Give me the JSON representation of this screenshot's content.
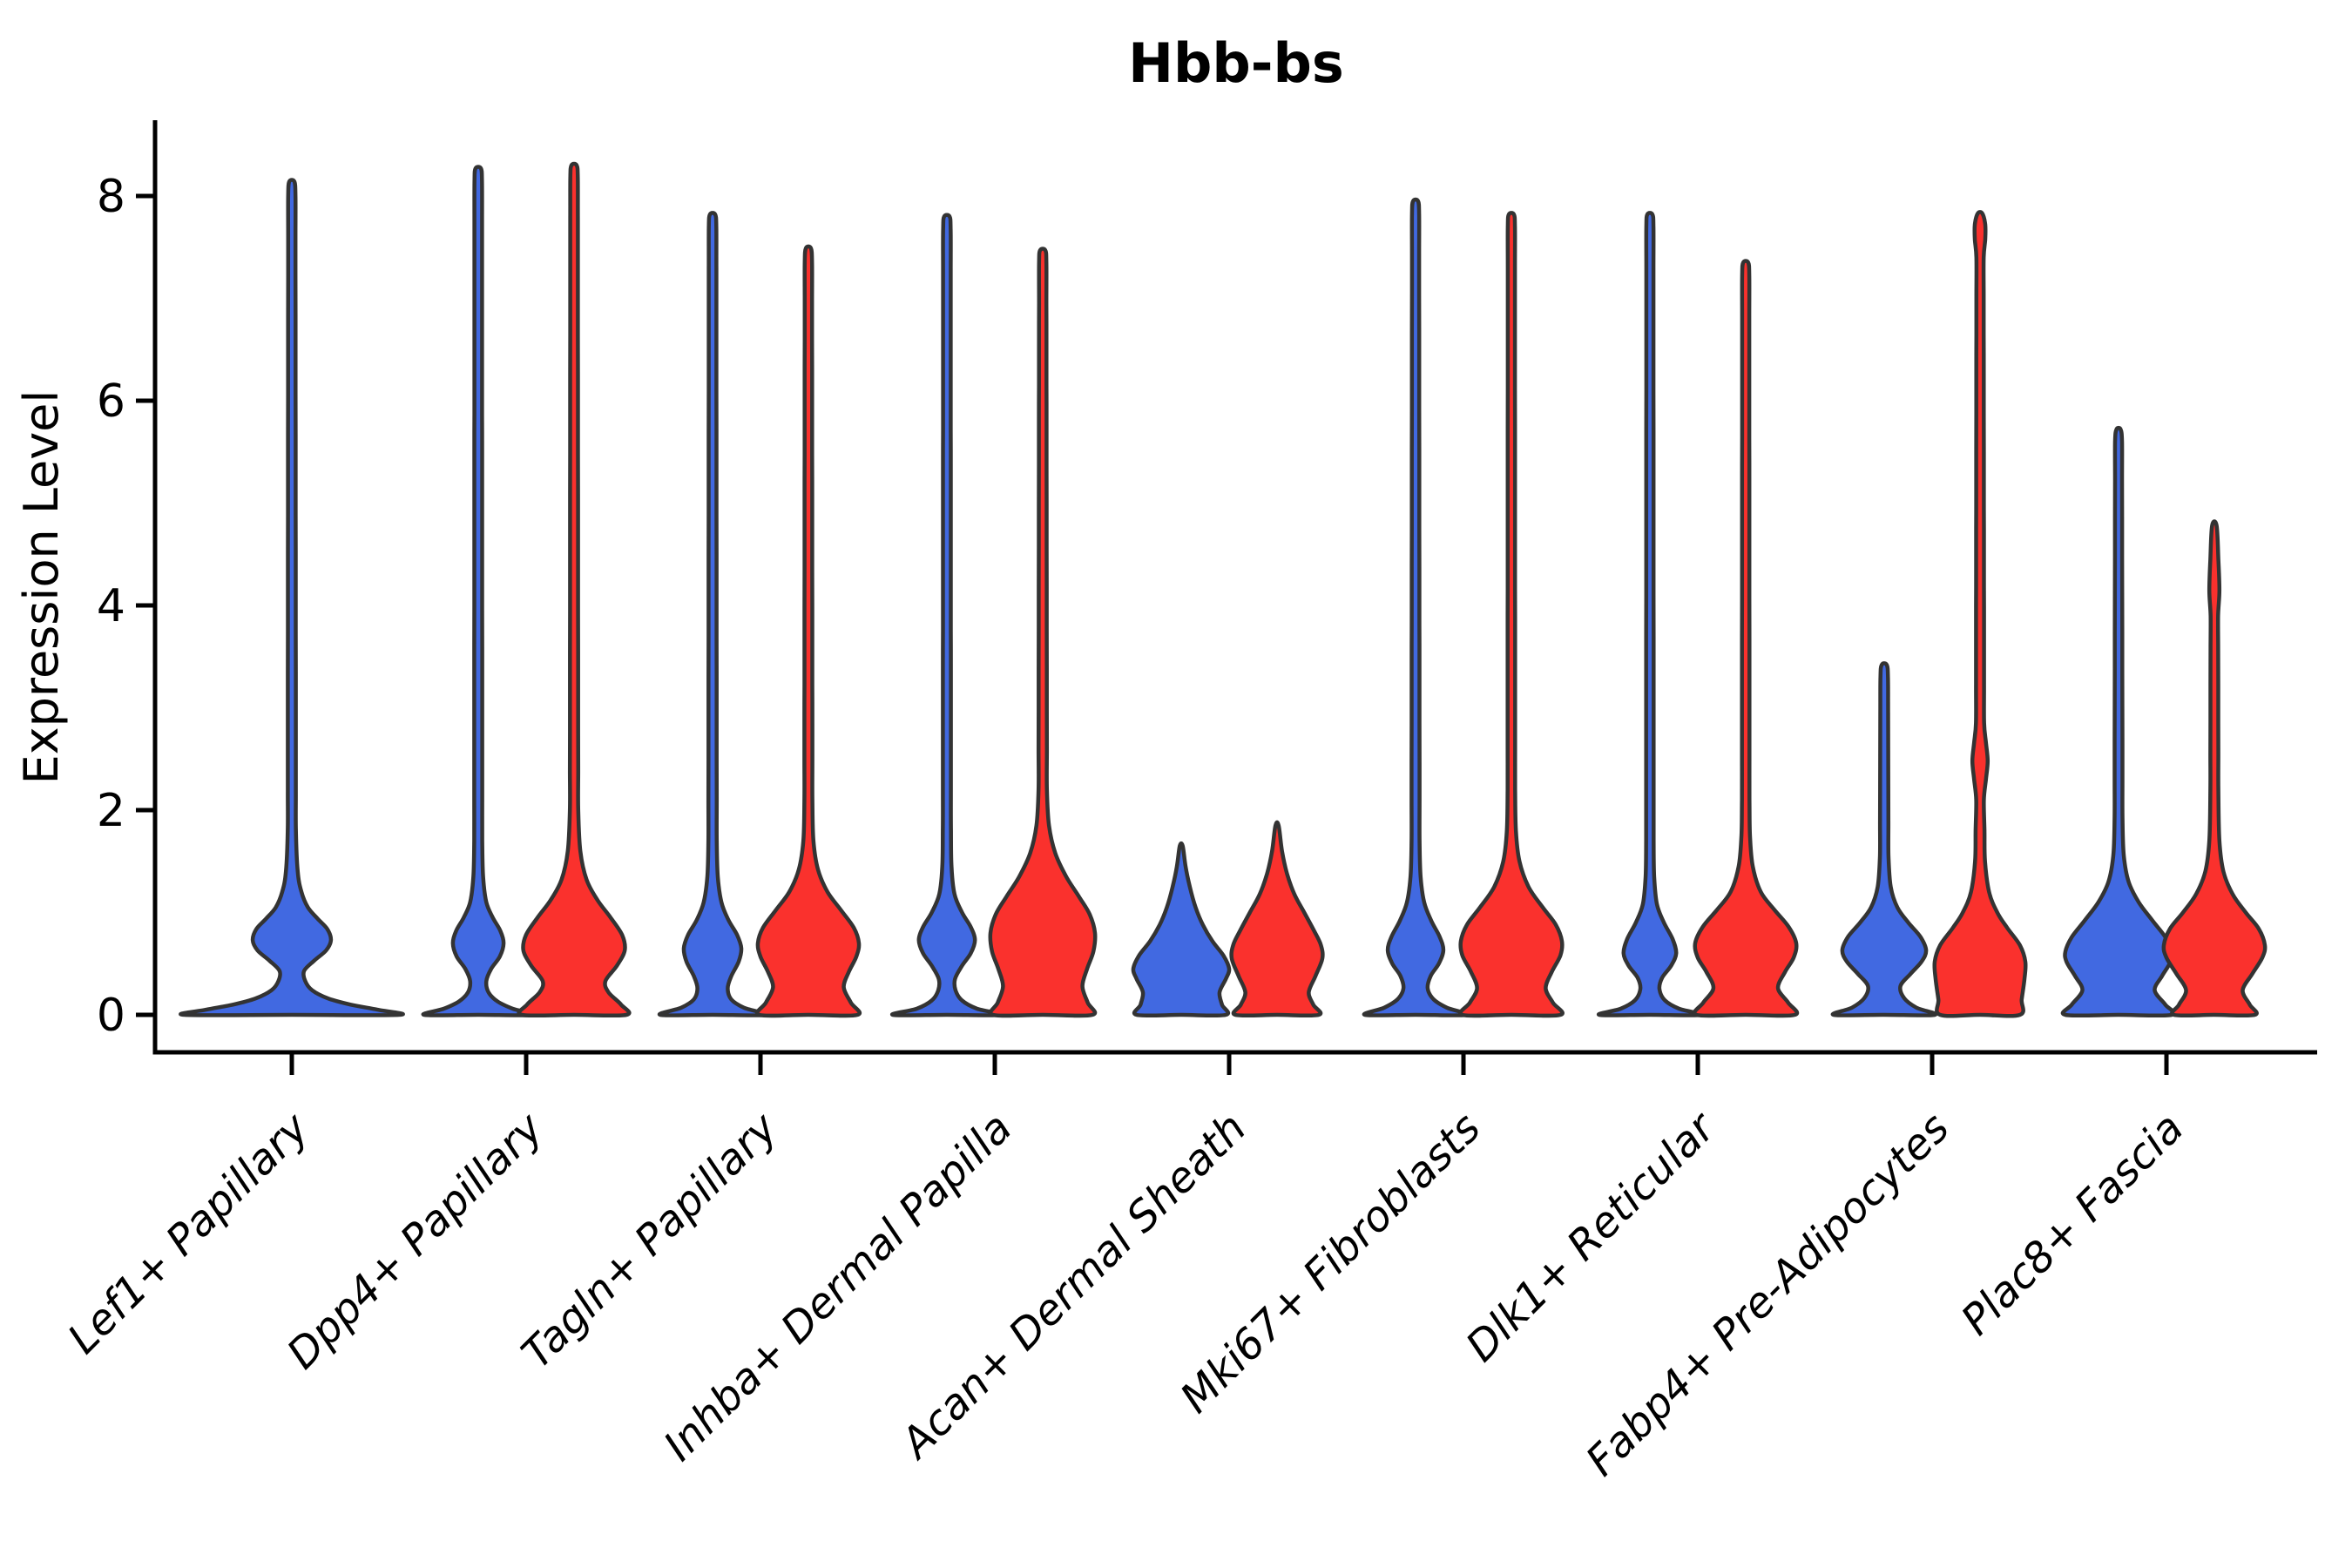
{
  "title": "Hbb-bs",
  "y_axis": {
    "label": "Expression Level",
    "tick_labels": [
      "0",
      "2",
      "4",
      "6",
      "8"
    ]
  },
  "x_axis": {
    "categories": [
      "Lef1+ Papillary",
      "Dpp4+ Papillary",
      "Tagln+ Papillary",
      "Inhba+ Dermal Papilla",
      "Acan+ Dermal Sheath",
      "Mki67+ Fibroblasts",
      "Dlk1+ Reticular",
      "Fabp4+ Pre-Adipocytes",
      "Plac8+ Fascia"
    ]
  },
  "chart_data": {
    "type": "violin",
    "title": "Hbb-bs",
    "xlabel": "",
    "ylabel": "Expression Level",
    "yticks": [
      0,
      2,
      4,
      6,
      8
    ],
    "ylim": [
      -0.4,
      8.7
    ],
    "grid": false,
    "legend_position": "none",
    "categories": [
      "Lef1+ Papillary",
      "Dpp4+ Papillary",
      "Tagln+ Papillary",
      "Inhba+ Dermal Papilla",
      "Acan+ Dermal Sheath",
      "Mki67+ Fibroblasts",
      "Dlk1+ Reticular",
      "Fabp4+ Pre-Adipocytes",
      "Plac8+ Fascia"
    ],
    "colors": {
      "blue": "#4169E1",
      "red": "#FA312D",
      "outline": "#333333"
    },
    "violins": [
      {
        "category": "Lef1+ Papillary",
        "side": "center",
        "color": "blue",
        "max_expression": 8.14,
        "half_width": 123,
        "profile": [
          [
            0,
            1.0
          ],
          [
            0.05,
            0.8
          ],
          [
            0.1,
            0.55
          ],
          [
            0.16,
            0.34
          ],
          [
            0.24,
            0.19
          ],
          [
            0.33,
            0.125
          ],
          [
            0.43,
            0.115
          ],
          [
            0.53,
            0.21
          ],
          [
            0.63,
            0.32
          ],
          [
            0.73,
            0.365
          ],
          [
            0.84,
            0.33
          ],
          [
            0.94,
            0.24
          ],
          [
            1.05,
            0.15
          ],
          [
            1.2,
            0.09
          ],
          [
            1.4,
            0.055
          ],
          [
            1.8,
            0.038
          ],
          [
            8.0,
            0.034
          ],
          [
            8.14,
            0.024
          ]
        ]
      },
      {
        "category": "Dpp4+ Papillary",
        "side": "left",
        "color": "blue",
        "max_expression": 8.27,
        "half_width": 62,
        "profile": [
          [
            0,
            1.0
          ],
          [
            0.06,
            0.64
          ],
          [
            0.13,
            0.36
          ],
          [
            0.22,
            0.19
          ],
          [
            0.33,
            0.15
          ],
          [
            0.45,
            0.24
          ],
          [
            0.57,
            0.4
          ],
          [
            0.7,
            0.47
          ],
          [
            0.82,
            0.41
          ],
          [
            0.95,
            0.27
          ],
          [
            1.1,
            0.15
          ],
          [
            1.35,
            0.09
          ],
          [
            1.7,
            0.075
          ],
          [
            8.15,
            0.07
          ],
          [
            8.27,
            0.05
          ]
        ]
      },
      {
        "category": "Dpp4+ Papillary",
        "side": "right",
        "color": "red",
        "max_expression": 8.3,
        "half_width": 60,
        "profile": [
          [
            0,
            1.0
          ],
          [
            0.1,
            0.9
          ],
          [
            0.22,
            0.66
          ],
          [
            0.33,
            0.6
          ],
          [
            0.48,
            0.82
          ],
          [
            0.63,
            0.97
          ],
          [
            0.78,
            0.92
          ],
          [
            0.95,
            0.7
          ],
          [
            1.12,
            0.45
          ],
          [
            1.32,
            0.24
          ],
          [
            1.6,
            0.12
          ],
          [
            2.0,
            0.08
          ],
          [
            8.18,
            0.072
          ],
          [
            8.3,
            0.05
          ]
        ]
      },
      {
        "category": "Tagln+ Papillary",
        "side": "left",
        "color": "blue",
        "max_expression": 7.82,
        "half_width": 60,
        "profile": [
          [
            0,
            1.0
          ],
          [
            0.07,
            0.6
          ],
          [
            0.15,
            0.36
          ],
          [
            0.26,
            0.29
          ],
          [
            0.38,
            0.36
          ],
          [
            0.52,
            0.5
          ],
          [
            0.65,
            0.55
          ],
          [
            0.78,
            0.47
          ],
          [
            0.93,
            0.3
          ],
          [
            1.1,
            0.17
          ],
          [
            1.35,
            0.1
          ],
          [
            1.7,
            0.08
          ],
          [
            7.7,
            0.072
          ],
          [
            7.82,
            0.05
          ]
        ]
      },
      {
        "category": "Tagln+ Papillary",
        "side": "right",
        "color": "red",
        "max_expression": 7.49,
        "half_width": 58,
        "profile": [
          [
            0,
            0.97
          ],
          [
            0.12,
            0.84
          ],
          [
            0.27,
            0.7
          ],
          [
            0.42,
            0.8
          ],
          [
            0.57,
            0.95
          ],
          [
            0.7,
            1.0
          ],
          [
            0.85,
            0.9
          ],
          [
            1.02,
            0.65
          ],
          [
            1.2,
            0.38
          ],
          [
            1.42,
            0.19
          ],
          [
            1.7,
            0.1
          ],
          [
            2.1,
            0.08
          ],
          [
            7.35,
            0.072
          ],
          [
            7.49,
            0.05
          ]
        ]
      },
      {
        "category": "Inhba+ Dermal Papilla",
        "side": "left",
        "color": "blue",
        "max_expression": 7.8,
        "half_width": 62,
        "profile": [
          [
            0,
            1.0
          ],
          [
            0.06,
            0.56
          ],
          [
            0.14,
            0.28
          ],
          [
            0.24,
            0.16
          ],
          [
            0.35,
            0.15
          ],
          [
            0.48,
            0.28
          ],
          [
            0.6,
            0.44
          ],
          [
            0.73,
            0.52
          ],
          [
            0.86,
            0.44
          ],
          [
            1.0,
            0.28
          ],
          [
            1.18,
            0.14
          ],
          [
            1.45,
            0.085
          ],
          [
            1.8,
            0.075
          ],
          [
            7.68,
            0.07
          ],
          [
            7.8,
            0.05
          ]
        ]
      },
      {
        "category": "Inhba+ Dermal Papilla",
        "side": "right",
        "color": "red",
        "max_expression": 7.47,
        "half_width": 60,
        "profile": [
          [
            0,
            0.95
          ],
          [
            0.12,
            0.86
          ],
          [
            0.28,
            0.76
          ],
          [
            0.45,
            0.85
          ],
          [
            0.62,
            0.97
          ],
          [
            0.8,
            1.0
          ],
          [
            0.98,
            0.9
          ],
          [
            1.15,
            0.7
          ],
          [
            1.35,
            0.45
          ],
          [
            1.58,
            0.24
          ],
          [
            1.85,
            0.12
          ],
          [
            2.2,
            0.08
          ],
          [
            7.35,
            0.07
          ],
          [
            7.47,
            0.05
          ]
        ]
      },
      {
        "category": "Acan+ Dermal Sheath",
        "side": "left",
        "color": "blue",
        "max_expression": 1.65,
        "half_width": 55,
        "profile": [
          [
            0,
            0.93
          ],
          [
            0.1,
            0.85
          ],
          [
            0.22,
            0.8
          ],
          [
            0.35,
            0.93
          ],
          [
            0.45,
            1.0
          ],
          [
            0.58,
            0.88
          ],
          [
            0.72,
            0.65
          ],
          [
            0.88,
            0.45
          ],
          [
            1.05,
            0.3
          ],
          [
            1.25,
            0.18
          ],
          [
            1.45,
            0.09
          ],
          [
            1.65,
            0.03
          ]
        ]
      },
      {
        "category": "Acan+ Dermal Sheath",
        "side": "right",
        "color": "red",
        "max_expression": 1.85,
        "half_width": 52,
        "profile": [
          [
            0,
            0.92
          ],
          [
            0.1,
            0.8
          ],
          [
            0.22,
            0.7
          ],
          [
            0.38,
            0.85
          ],
          [
            0.55,
            1.0
          ],
          [
            0.68,
            0.97
          ],
          [
            0.82,
            0.82
          ],
          [
            1.0,
            0.6
          ],
          [
            1.18,
            0.38
          ],
          [
            1.38,
            0.22
          ],
          [
            1.6,
            0.11
          ],
          [
            1.85,
            0.035
          ]
        ]
      },
      {
        "category": "Mki67+ Fibroblasts",
        "side": "left",
        "color": "blue",
        "max_expression": 7.95,
        "half_width": 58,
        "profile": [
          [
            0,
            1.0
          ],
          [
            0.07,
            0.62
          ],
          [
            0.15,
            0.36
          ],
          [
            0.26,
            0.24
          ],
          [
            0.38,
            0.3
          ],
          [
            0.5,
            0.46
          ],
          [
            0.63,
            0.55
          ],
          [
            0.76,
            0.48
          ],
          [
            0.92,
            0.31
          ],
          [
            1.1,
            0.17
          ],
          [
            1.35,
            0.1
          ],
          [
            1.7,
            0.08
          ],
          [
            7.82,
            0.07
          ],
          [
            7.95,
            0.05
          ]
        ]
      },
      {
        "category": "Mki67+ Fibroblasts",
        "side": "right",
        "color": "red",
        "max_expression": 7.82,
        "half_width": 58,
        "profile": [
          [
            0,
            0.97
          ],
          [
            0.12,
            0.82
          ],
          [
            0.26,
            0.68
          ],
          [
            0.42,
            0.8
          ],
          [
            0.58,
            0.97
          ],
          [
            0.72,
            1.0
          ],
          [
            0.88,
            0.88
          ],
          [
            1.05,
            0.62
          ],
          [
            1.25,
            0.34
          ],
          [
            1.5,
            0.16
          ],
          [
            1.8,
            0.09
          ],
          [
            2.2,
            0.075
          ],
          [
            7.7,
            0.07
          ],
          [
            7.82,
            0.05
          ]
        ]
      },
      {
        "category": "Dlk1+ Reticular",
        "side": "left",
        "color": "blue",
        "max_expression": 7.82,
        "half_width": 58,
        "profile": [
          [
            0,
            1.0
          ],
          [
            0.06,
            0.58
          ],
          [
            0.14,
            0.3
          ],
          [
            0.25,
            0.19
          ],
          [
            0.36,
            0.24
          ],
          [
            0.48,
            0.42
          ],
          [
            0.6,
            0.52
          ],
          [
            0.74,
            0.45
          ],
          [
            0.9,
            0.28
          ],
          [
            1.08,
            0.14
          ],
          [
            1.35,
            0.085
          ],
          [
            1.7,
            0.075
          ],
          [
            7.7,
            0.07
          ],
          [
            7.82,
            0.05
          ]
        ]
      },
      {
        "category": "Dlk1+ Reticular",
        "side": "right",
        "color": "red",
        "max_expression": 7.35,
        "half_width": 58,
        "profile": [
          [
            0,
            0.97
          ],
          [
            0.12,
            0.84
          ],
          [
            0.26,
            0.64
          ],
          [
            0.42,
            0.78
          ],
          [
            0.56,
            0.95
          ],
          [
            0.7,
            1.0
          ],
          [
            0.86,
            0.85
          ],
          [
            1.02,
            0.58
          ],
          [
            1.2,
            0.3
          ],
          [
            1.45,
            0.14
          ],
          [
            1.75,
            0.085
          ],
          [
            2.1,
            0.075
          ],
          [
            7.22,
            0.07
          ],
          [
            7.35,
            0.05
          ]
        ]
      },
      {
        "category": "Fabp4+ Pre-Adipocytes",
        "side": "left",
        "color": "blue",
        "max_expression": 3.42,
        "half_width": 58,
        "profile": [
          [
            0,
            1.0
          ],
          [
            0.07,
            0.64
          ],
          [
            0.16,
            0.4
          ],
          [
            0.28,
            0.32
          ],
          [
            0.4,
            0.52
          ],
          [
            0.52,
            0.74
          ],
          [
            0.63,
            0.83
          ],
          [
            0.76,
            0.72
          ],
          [
            0.9,
            0.48
          ],
          [
            1.05,
            0.26
          ],
          [
            1.25,
            0.13
          ],
          [
            1.55,
            0.085
          ],
          [
            3.3,
            0.075
          ],
          [
            3.42,
            0.05
          ]
        ]
      },
      {
        "category": "Fabp4+ Pre-Adipocytes",
        "side": "right",
        "color": "red",
        "max_expression": 7.83,
        "half_width": 52,
        "profile": [
          [
            0,
            0.88
          ],
          [
            0.15,
            0.92
          ],
          [
            0.35,
            0.98
          ],
          [
            0.52,
            1.0
          ],
          [
            0.68,
            0.88
          ],
          [
            0.85,
            0.6
          ],
          [
            1.0,
            0.38
          ],
          [
            1.2,
            0.2
          ],
          [
            1.5,
            0.11
          ],
          [
            2.1,
            0.085
          ],
          [
            2.3,
            0.13
          ],
          [
            2.48,
            0.17
          ],
          [
            2.66,
            0.13
          ],
          [
            2.85,
            0.09
          ],
          [
            7.4,
            0.08
          ],
          [
            7.58,
            0.115
          ],
          [
            7.72,
            0.115
          ],
          [
            7.83,
            0.05
          ]
        ]
      },
      {
        "category": "Plac8+ Fascia",
        "side": "left",
        "color": "blue",
        "max_expression": 5.72,
        "half_width": 61,
        "profile": [
          [
            0,
            1.0
          ],
          [
            0.1,
            0.88
          ],
          [
            0.24,
            0.68
          ],
          [
            0.38,
            0.82
          ],
          [
            0.52,
            0.98
          ],
          [
            0.62,
            1.0
          ],
          [
            0.76,
            0.88
          ],
          [
            0.92,
            0.64
          ],
          [
            1.1,
            0.38
          ],
          [
            1.3,
            0.19
          ],
          [
            1.55,
            0.1
          ],
          [
            1.9,
            0.075
          ],
          [
            5.6,
            0.065
          ],
          [
            5.72,
            0.04
          ]
        ]
      },
      {
        "category": "Plac8+ Fascia",
        "side": "right",
        "color": "red",
        "max_expression": 4.78,
        "half_width": 58,
        "profile": [
          [
            0,
            0.8
          ],
          [
            0.1,
            0.7
          ],
          [
            0.24,
            0.56
          ],
          [
            0.4,
            0.75
          ],
          [
            0.56,
            0.95
          ],
          [
            0.68,
            1.0
          ],
          [
            0.84,
            0.88
          ],
          [
            1.0,
            0.62
          ],
          [
            1.18,
            0.36
          ],
          [
            1.4,
            0.18
          ],
          [
            1.7,
            0.1
          ],
          [
            2.2,
            0.08
          ],
          [
            3.9,
            0.075
          ],
          [
            4.15,
            0.1
          ],
          [
            4.45,
            0.08
          ],
          [
            4.78,
            0.045
          ]
        ]
      }
    ]
  }
}
